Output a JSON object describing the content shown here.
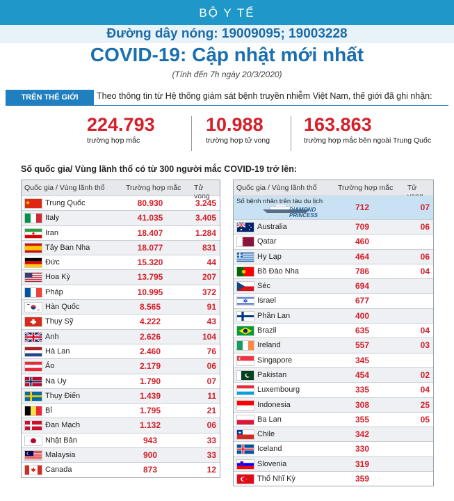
{
  "header": {
    "ministry": "BỘ Y TẾ",
    "hotline": "Đường dây nóng: 19009095; 19003228",
    "title": "COVID-19: Cập nhật mới nhất",
    "as_of": "(Tính đến 7h ngày 20/3/2020)"
  },
  "world": {
    "tag": "TRÊN THẾ GIỚI",
    "source": "Theo thông tin từ Hệ thống giám sát bệnh truyền nhiễm Việt Nam, thế giới đã ghi nhận:",
    "stats": [
      {
        "value": "224.793",
        "label": "trường hợp mắc"
      },
      {
        "value": "10.988",
        "label": "trường hợp tử vong"
      },
      {
        "value": "163.863",
        "label": "trường hợp  mắc bên ngoài Trung Quốc"
      }
    ]
  },
  "list_heading": "Số quốc gia/ Vùng lãnh thổ có từ 300 người  mắc COVID-19 trở lên:",
  "columns": {
    "country": "Quốc gia / Vùng lãnh thổ",
    "cases": "Trường hợp mắc",
    "deaths": "Tử vong"
  },
  "left_table": [
    {
      "name": "Trung Quốc",
      "cases": "80.930",
      "deaths": "3.245",
      "flag": "cn-flag"
    },
    {
      "name": "Italy",
      "cases": "41.035",
      "deaths": "3.405",
      "flag": "it-flag"
    },
    {
      "name": "Iran",
      "cases": "18.407",
      "deaths": "1.284",
      "flag": "ir-flag"
    },
    {
      "name": "Tây Ban Nha",
      "cases": "18.077",
      "deaths": "831",
      "flag": "es-flag"
    },
    {
      "name": "Đức",
      "cases": "15.320",
      "deaths": "44",
      "flag": "de-flag"
    },
    {
      "name": "Hoa Kỳ",
      "cases": "13.795",
      "deaths": "207",
      "flag": "us-flag"
    },
    {
      "name": "Pháp",
      "cases": "10.995",
      "deaths": "372",
      "flag": "fr-flag"
    },
    {
      "name": "Hàn Quốc",
      "cases": "8.565",
      "deaths": "91",
      "flag": "kr-flag"
    },
    {
      "name": "Thụy Sỹ",
      "cases": "4.222",
      "deaths": "43",
      "flag": "ch-flag"
    },
    {
      "name": "Anh",
      "cases": "2.626",
      "deaths": "104",
      "flag": "gb-flag"
    },
    {
      "name": "Hà Lan",
      "cases": "2.460",
      "deaths": "76",
      "flag": "nl-flag"
    },
    {
      "name": "Áo",
      "cases": "2.179",
      "deaths": "06",
      "flag": "at-flag"
    },
    {
      "name": "Na Uy",
      "cases": "1.790",
      "deaths": "07",
      "flag": "no-flag"
    },
    {
      "name": "Thụy Điển",
      "cases": "1.439",
      "deaths": "11",
      "flag": "se-flag"
    },
    {
      "name": "Bỉ",
      "cases": "1.795",
      "deaths": "21",
      "flag": "be-flag"
    },
    {
      "name": "Đan Mạch",
      "cases": "1.132",
      "deaths": "06",
      "flag": "dk-flag"
    },
    {
      "name": "Nhật Bản",
      "cases": "943",
      "deaths": "33",
      "flag": "jp-flag"
    },
    {
      "name": "Malaysia",
      "cases": "900",
      "deaths": "33",
      "flag": "my-flag"
    },
    {
      "name": "Canada",
      "cases": "873",
      "deaths": "12",
      "flag": "ca-flag"
    }
  ],
  "ship_row": {
    "label": "Số bệnh nhân trên tàu du lịch",
    "ship_name_1": "DIAMOND",
    "ship_name_2": "PRINCESS",
    "cases": "712",
    "deaths": "07"
  },
  "right_table": [
    {
      "name": "Australia",
      "cases": "709",
      "deaths": "06",
      "flag": "au-flag"
    },
    {
      "name": "Qatar",
      "cases": "460",
      "deaths": "",
      "flag": "qa-flag"
    },
    {
      "name": "Hy Lạp",
      "cases": "464",
      "deaths": "06",
      "flag": "gr-flag"
    },
    {
      "name": "Bồ Đào Nha",
      "cases": "786",
      "deaths": "04",
      "flag": "pt-flag"
    },
    {
      "name": "Séc",
      "cases": "694",
      "deaths": "",
      "flag": "cz-flag"
    },
    {
      "name": "Israel",
      "cases": "677",
      "deaths": "",
      "flag": "il-flag"
    },
    {
      "name": "Phần Lan",
      "cases": "400",
      "deaths": "",
      "flag": "fi-flag"
    },
    {
      "name": "Brazil",
      "cases": "635",
      "deaths": "04",
      "flag": "br-flag"
    },
    {
      "name": "Ireland",
      "cases": "557",
      "deaths": "03",
      "flag": "ie-flag"
    },
    {
      "name": "Singapore",
      "cases": "345",
      "deaths": "",
      "flag": "sg-flag"
    },
    {
      "name": "Pakistan",
      "cases": "454",
      "deaths": "02",
      "flag": "pk-flag"
    },
    {
      "name": "Luxembourg",
      "cases": "335",
      "deaths": "04",
      "flag": "lu-flag"
    },
    {
      "name": "Indonesia",
      "cases": "308",
      "deaths": "25",
      "flag": "id-flag"
    },
    {
      "name": "Ba Lan",
      "cases": "355",
      "deaths": "05",
      "flag": "pl-flag"
    },
    {
      "name": "Chile",
      "cases": "342",
      "deaths": "",
      "flag": "cl-flag"
    },
    {
      "name": "Iceland",
      "cases": "330",
      "deaths": "",
      "flag": "is-flag"
    },
    {
      "name": "Slovenia",
      "cases": "319",
      "deaths": "",
      "flag": "si-flag"
    },
    {
      "name": "Thổ Nhĩ Kỳ",
      "cases": "359",
      "deaths": "",
      "flag": "tr-flag"
    }
  ],
  "colors": {
    "accent_blue": "#1f97c8",
    "title_blue": "#1a6fae",
    "number_red": "#d3202a"
  }
}
